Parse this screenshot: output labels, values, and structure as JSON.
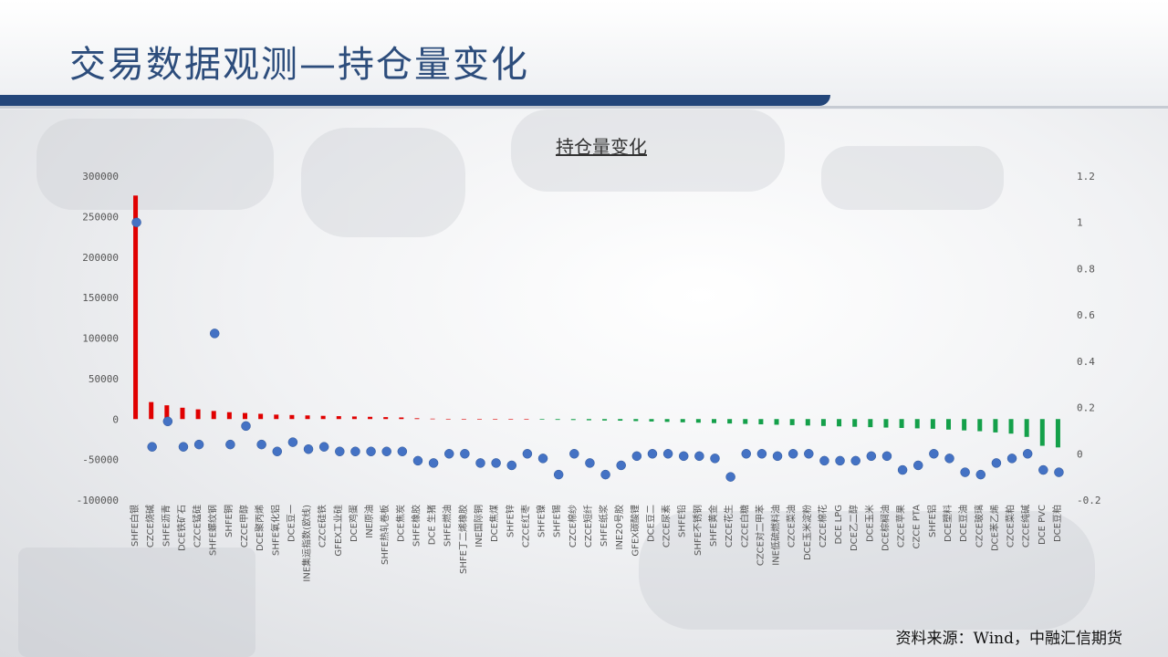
{
  "slide": {
    "title": "交易数据观测—持仓量变化",
    "source": "资料来源：Wind，中融汇信期货"
  },
  "colors": {
    "title": "#2d4d7c",
    "band": "#23467a",
    "positive_bar": "#e00000",
    "negative_bar": "#14a04a",
    "dot": "#4472c4"
  },
  "chart_data": {
    "type": "bar",
    "title": "持仓量变化",
    "categories": [
      "SHFE白银",
      "CZCE烧碱",
      "SHFE沥青",
      "DCE铁矿石",
      "CZCE锰硅",
      "SHFE螺纹钢",
      "SHFE铜",
      "CZCE甲醇",
      "DCE聚丙烯",
      "SHFE氧化铝",
      "DCE豆一",
      "INE集运指数(欧线)",
      "CZCE硅铁",
      "GFEX工业硅",
      "DCE鸡蛋",
      "INE原油",
      "SHFE热轧卷板",
      "DCE焦炭",
      "SHFE橡胶",
      "DCE 生猪",
      "SHFE燃油",
      "SHFE丁二烯橡胶",
      "INE国际铜",
      "DCE焦煤",
      "SHFE锌",
      "CZCE红枣",
      "SHFE镍",
      "SHFE锡",
      "CZCE棉纱",
      "CZCE短纤",
      "SHFE纸浆",
      "INE20号胶",
      "GFEX碳酸锂",
      "DCE豆二",
      "CZCE尿素",
      "SHFE铅",
      "SHFE不锈钢",
      "SHFE黄金",
      "CZCE花生",
      "CZCE白糖",
      "CZCE对二甲苯",
      "INE低硫燃料油",
      "CZCE菜油",
      "DCE玉米淀粉",
      "CZCE棉花",
      "DCE LPG",
      "DCE乙二醇",
      "DCE玉米",
      "DCE棕榈油",
      "CZCE苹果",
      "CZCE PTA",
      "SHFE铝",
      "DCE塑料",
      "DCE豆油",
      "CZCE玻璃",
      "DCE苯乙烯",
      "CZCE菜粕",
      "CZCE纯碱",
      "DCE PVC",
      "DCE豆粕"
    ],
    "series": [
      {
        "axis": "left",
        "kind": "bar",
        "values": [
          276000,
          21000,
          17000,
          14000,
          12000,
          10000,
          8500,
          7500,
          6500,
          5500,
          5000,
          4500,
          4000,
          3600,
          3200,
          2800,
          2400,
          2000,
          1000,
          500,
          300,
          200,
          100,
          50,
          30,
          20,
          -800,
          -1000,
          -1200,
          -1500,
          -1800,
          -2000,
          -2500,
          -3000,
          -3500,
          -4000,
          -4500,
          -5000,
          -5500,
          -6000,
          -6500,
          -7000,
          -7500,
          -8000,
          -8500,
          -9000,
          -9500,
          -10000,
          -10500,
          -11000,
          -11500,
          -12000,
          -13000,
          -14000,
          -15000,
          -16500,
          -18000,
          -22000,
          -33000,
          -35000
        ]
      },
      {
        "axis": "right",
        "kind": "scatter",
        "values": [
          1.0,
          0.03,
          0.14,
          0.03,
          0.04,
          0.52,
          0.04,
          0.12,
          0.04,
          0.01,
          0.05,
          0.02,
          0.03,
          0.01,
          0.01,
          0.01,
          0.01,
          0.01,
          -0.03,
          -0.04,
          0.0,
          0.0,
          -0.04,
          -0.04,
          -0.05,
          0.0,
          -0.02,
          -0.09,
          0.0,
          -0.04,
          -0.09,
          -0.05,
          -0.01,
          0.0,
          0.0,
          -0.01,
          -0.01,
          -0.02,
          -0.1,
          0.0,
          0.0,
          -0.01,
          0.0,
          0.0,
          -0.03,
          -0.03,
          -0.03,
          -0.01,
          -0.01,
          -0.07,
          -0.05,
          0.0,
          -0.02,
          -0.08,
          -0.09,
          -0.04,
          -0.02,
          0.0,
          -0.07,
          -0.08
        ]
      }
    ],
    "left_axis": {
      "ylim": [
        -100000,
        300000
      ],
      "ticks": [
        300000,
        250000,
        200000,
        150000,
        100000,
        50000,
        0,
        -50000,
        -100000
      ]
    },
    "right_axis": {
      "ylim": [
        -0.2,
        1.2
      ],
      "ticks": [
        "1.2",
        "1",
        "0.8",
        "0.6",
        "0.4",
        "0.2",
        "0",
        "-0.2"
      ]
    },
    "grid": false
  }
}
